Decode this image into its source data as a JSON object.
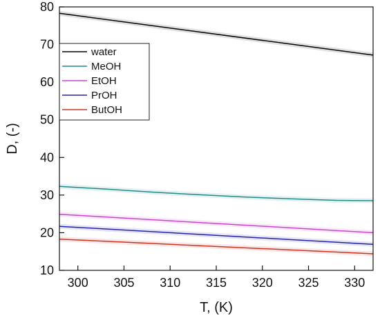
{
  "chart_data": {
    "type": "line",
    "title": "",
    "xlabel": "T, (K)",
    "ylabel": "D, (-)",
    "xlim": [
      298,
      332
    ],
    "ylim": [
      10,
      80
    ],
    "xticks": [
      300,
      305,
      310,
      315,
      320,
      325,
      330
    ],
    "yticks": [
      10,
      20,
      30,
      40,
      50,
      60,
      70,
      80
    ],
    "grid": false,
    "legend_position": "top-left",
    "series": [
      {
        "name": "water",
        "color": "#000000",
        "x": [
          298,
          332
        ],
        "y": [
          78.3,
          67.2
        ]
      },
      {
        "name": "MeOH",
        "color": "#1f8a8a",
        "x": [
          298,
          303,
          308,
          313,
          318,
          323,
          328,
          332
        ],
        "y": [
          32.3,
          31.6,
          30.8,
          30.1,
          29.5,
          29.0,
          28.6,
          28.5
        ]
      },
      {
        "name": "EtOH",
        "color": "#cc44cc",
        "x": [
          298,
          332
        ],
        "y": [
          24.9,
          20.0
        ]
      },
      {
        "name": "PrOH",
        "color": "#2222aa",
        "x": [
          298,
          332
        ],
        "y": [
          21.7,
          16.9
        ]
      },
      {
        "name": "ButOH",
        "color": "#cc3322",
        "x": [
          298,
          332
        ],
        "y": [
          18.3,
          14.4
        ]
      }
    ]
  }
}
